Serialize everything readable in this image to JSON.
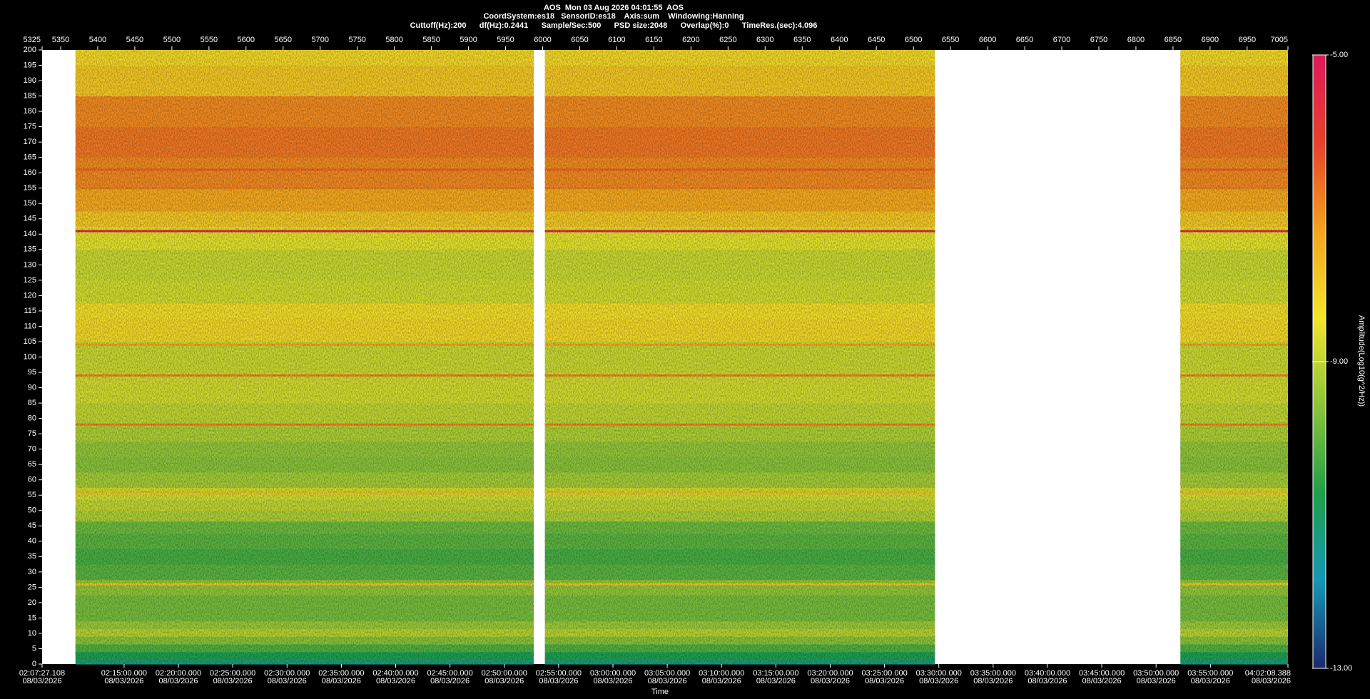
{
  "chart_data": {
    "type": "spectrogram",
    "title": "AOS  Mon 03 Aug 2026 04:01:55  AOS",
    "subtitle": "CoordSystem:es18   SensorID:es18    Axis:sum    Windowing:Hanning",
    "settings_line": "Cuttoff(Hz):200      df(Hz):0.2441      Sample/Sec:500      PSD size:2048      Overlap(%):0      TimeRes.(sec):4.096",
    "xlabel": "Time",
    "colorbar_label": "Amplitude(Log10(g^2/Hz))",
    "xlim": [
      5325,
      7005
    ],
    "x2ticks": [
      5325,
      5350,
      5400,
      5450,
      5500,
      5550,
      5600,
      5650,
      5700,
      5750,
      5800,
      5850,
      5900,
      5950,
      6000,
      6050,
      6100,
      6150,
      6200,
      6250,
      6300,
      6350,
      6400,
      6450,
      6500,
      6550,
      6600,
      6650,
      6700,
      6750,
      6800,
      6850,
      6900,
      6950,
      7005
    ],
    "xticks": [
      {
        "value": 5325,
        "label": "02:07:27.108"
      },
      {
        "value": 5435.57,
        "label": "02:15:00.000"
      },
      {
        "value": 5508.81,
        "label": "02:20:00.000"
      },
      {
        "value": 5582.05,
        "label": "02:25:00.000"
      },
      {
        "value": 5655.3,
        "label": "02:30:00.000"
      },
      {
        "value": 5728.54,
        "label": "02:35:00.000"
      },
      {
        "value": 5801.78,
        "label": "02:40:00.000"
      },
      {
        "value": 5875.02,
        "label": "02:45:00.000"
      },
      {
        "value": 5948.27,
        "label": "02:50:00.000"
      },
      {
        "value": 6021.51,
        "label": "02:55:00.000"
      },
      {
        "value": 6094.75,
        "label": "03:00:00.000"
      },
      {
        "value": 6168,
        "label": "03:05:00.000"
      },
      {
        "value": 6241.24,
        "label": "03:10:00.000"
      },
      {
        "value": 6314.48,
        "label": "03:15:00.000"
      },
      {
        "value": 6387.72,
        "label": "03:20:00.000"
      },
      {
        "value": 6460.97,
        "label": "03:25:00.000"
      },
      {
        "value": 6534.21,
        "label": "03:30:00.000"
      },
      {
        "value": 6607.45,
        "label": "03:35:00.000"
      },
      {
        "value": 6680.7,
        "label": "03:40:00.000"
      },
      {
        "value": 6753.94,
        "label": "03:45:00.000"
      },
      {
        "value": 6827.18,
        "label": "03:50:00.000"
      },
      {
        "value": 6900.42,
        "label": "03:55:00.000"
      },
      {
        "value": 7005,
        "label": "04:02:08.388"
      }
    ],
    "xtick_dates": [
      "08/03/2026",
      "08/03/2026",
      "08/03/2026",
      "08/03/2026",
      "08/03/2026",
      "08/03/2026",
      "08/03/2026",
      "08/03/2026",
      "08/03/2026",
      "08/03/2026",
      "08/03/2026",
      "08/03/2026",
      "08/03/2026",
      "08/03/2026",
      "08/03/2026",
      "08/03/2026",
      "08/03/2026",
      "08/03/2026",
      "08/03/2026",
      "08/03/2026",
      "08/03/2026",
      "08/03/2026",
      "08/03/2026"
    ],
    "ylim": [
      0,
      200
    ],
    "yticks": [
      0,
      5,
      10,
      15,
      20,
      25,
      30,
      35,
      40,
      45,
      50,
      55,
      60,
      65,
      70,
      75,
      80,
      85,
      90,
      95,
      100,
      105,
      110,
      115,
      120,
      125,
      130,
      135,
      140,
      145,
      150,
      155,
      160,
      165,
      170,
      175,
      180,
      185,
      190,
      195,
      200
    ],
    "clim": [
      -13,
      -5
    ],
    "cticks": [
      {
        "value": -5,
        "label": "-5.00"
      },
      {
        "value": -9,
        "label": "-9.00"
      },
      {
        "value": -13,
        "label": "-13.00"
      }
    ],
    "colorscale": [
      "#1b2a6b",
      "#1497b8",
      "#1fa048",
      "#8cc43a",
      "#f2e62a",
      "#f4a21e",
      "#e8402a",
      "#e0185a"
    ],
    "segments": [
      [
        5370,
        5988
      ],
      [
        6003,
        6529
      ],
      [
        6860,
        7005
      ]
    ],
    "frequencies": [
      0,
      3,
      5,
      8,
      10,
      13,
      15,
      20,
      25,
      30,
      35,
      40,
      45,
      48,
      52,
      55,
      60,
      65,
      70,
      75,
      80,
      90,
      100,
      110,
      115,
      120,
      130,
      140,
      145,
      150,
      160,
      170,
      180,
      190,
      200
    ],
    "amplitudes": [
      -11.2,
      -10.8,
      -10.2,
      -9.6,
      -9.1,
      -9.4,
      -9.8,
      -9.8,
      -9.5,
      -10.1,
      -10.3,
      -10.1,
      -9.9,
      -9.2,
      -9.0,
      -8.8,
      -9.3,
      -9.6,
      -9.5,
      -9.2,
      -9.0,
      -8.8,
      -8.9,
      -8.2,
      -8.3,
      -8.8,
      -8.9,
      -8.6,
      -7.9,
      -7.4,
      -7.0,
      -6.8,
      -7.0,
      -7.9,
      -8.2
    ],
    "lines": [
      {
        "freq": 141,
        "amp": -5.4
      },
      {
        "freq": 161,
        "amp": -6.6
      },
      {
        "freq": 155,
        "amp": -6.9
      },
      {
        "freq": 104,
        "amp": -7.4
      },
      {
        "freq": 94,
        "amp": -6.9
      },
      {
        "freq": 78,
        "amp": -6.9
      },
      {
        "freq": 56,
        "amp": -7.8
      },
      {
        "freq": 26,
        "amp": -7.9
      }
    ]
  }
}
